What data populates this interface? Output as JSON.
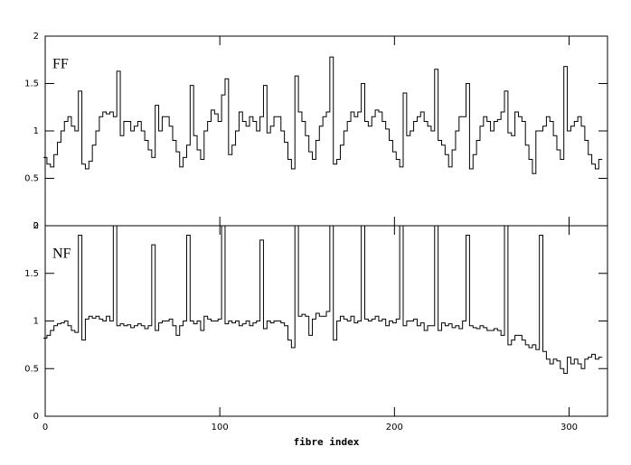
{
  "chart_data": [
    {
      "type": "line",
      "annotation": "FF",
      "xlim": [
        0,
        322
      ],
      "ylim": [
        0,
        2
      ],
      "xticks": [
        0,
        100,
        200,
        300
      ],
      "yticks": [
        0,
        0.5,
        1,
        1.5,
        2
      ],
      "x": [
        0,
        2,
        4,
        6,
        8,
        10,
        12,
        14,
        16,
        18,
        20,
        22,
        24,
        26,
        28,
        30,
        32,
        34,
        36,
        38,
        40,
        42,
        44,
        46,
        48,
        50,
        52,
        54,
        56,
        58,
        60,
        62,
        64,
        66,
        68,
        70,
        72,
        74,
        76,
        78,
        80,
        82,
        84,
        86,
        88,
        90,
        92,
        94,
        96,
        98,
        100,
        102,
        104,
        106,
        108,
        110,
        112,
        114,
        116,
        118,
        120,
        122,
        124,
        126,
        128,
        130,
        132,
        134,
        136,
        138,
        140,
        142,
        144,
        146,
        148,
        150,
        152,
        154,
        156,
        158,
        160,
        162,
        164,
        166,
        168,
        170,
        172,
        174,
        176,
        178,
        180,
        182,
        184,
        186,
        188,
        190,
        192,
        194,
        196,
        198,
        200,
        202,
        204,
        206,
        208,
        210,
        212,
        214,
        216,
        218,
        220,
        222,
        224,
        226,
        228,
        230,
        232,
        234,
        236,
        238,
        240,
        242,
        244,
        246,
        248,
        250,
        252,
        254,
        256,
        258,
        260,
        262,
        264,
        266,
        268,
        270,
        272,
        274,
        276,
        278,
        280,
        282,
        284,
        286,
        288,
        290,
        292,
        294,
        296,
        298,
        300,
        302,
        304,
        306,
        308,
        310,
        312,
        314,
        316,
        318
      ],
      "values": [
        0.72,
        0.65,
        0.62,
        0.75,
        0.88,
        1.0,
        1.1,
        1.15,
        1.05,
        1.0,
        1.42,
        0.65,
        0.6,
        0.68,
        0.85,
        1.0,
        1.15,
        1.2,
        1.18,
        1.2,
        1.15,
        1.63,
        0.95,
        1.1,
        1.1,
        1.0,
        1.05,
        1.1,
        1.0,
        0.9,
        0.8,
        0.72,
        1.27,
        1.0,
        1.15,
        1.15,
        1.05,
        0.9,
        0.78,
        0.62,
        0.72,
        0.85,
        1.48,
        0.95,
        0.8,
        0.7,
        1.0,
        1.1,
        1.22,
        1.18,
        1.1,
        1.38,
        1.55,
        0.75,
        0.85,
        1.0,
        1.2,
        1.1,
        1.05,
        1.15,
        1.1,
        1.0,
        1.15,
        1.48,
        0.98,
        1.05,
        1.15,
        1.15,
        1.0,
        0.88,
        0.7,
        0.6,
        1.58,
        1.2,
        1.1,
        0.95,
        0.78,
        0.7,
        0.9,
        1.05,
        1.15,
        1.2,
        1.78,
        0.65,
        0.7,
        0.85,
        1.0,
        1.1,
        1.2,
        1.15,
        1.2,
        1.5,
        1.1,
        1.05,
        1.15,
        1.22,
        1.2,
        1.1,
        1.02,
        0.9,
        0.78,
        0.7,
        0.62,
        1.4,
        0.95,
        1.0,
        1.1,
        1.15,
        1.2,
        1.1,
        1.05,
        1.0,
        1.65,
        0.9,
        0.85,
        0.75,
        0.62,
        0.8,
        1.0,
        1.15,
        1.15,
        1.5,
        0.6,
        0.75,
        0.9,
        1.05,
        1.15,
        1.1,
        1.0,
        1.1,
        1.12,
        1.2,
        1.42,
        0.98,
        0.95,
        1.2,
        1.15,
        1.1,
        0.85,
        0.7,
        0.55,
        1.0,
        1.0,
        1.05,
        1.15,
        1.1,
        0.95,
        0.8,
        0.7,
        1.68,
        1.0,
        1.05,
        1.1,
        1.15,
        1.05,
        0.9,
        0.75,
        0.65,
        0.6,
        0.7
      ]
    },
    {
      "type": "line",
      "annotation": "NF",
      "xlabel": "fibre index",
      "xlim": [
        0,
        322
      ],
      "ylim": [
        0,
        2
      ],
      "xticks": [
        0,
        100,
        200,
        300
      ],
      "yticks": [
        0,
        0.5,
        1,
        1.5,
        2
      ],
      "x": [
        0,
        2,
        4,
        6,
        8,
        10,
        12,
        14,
        16,
        18,
        20,
        22,
        24,
        26,
        28,
        30,
        32,
        34,
        36,
        38,
        40,
        42,
        44,
        46,
        48,
        50,
        52,
        54,
        56,
        58,
        60,
        62,
        64,
        66,
        68,
        70,
        72,
        74,
        76,
        78,
        80,
        82,
        84,
        86,
        88,
        90,
        92,
        94,
        96,
        98,
        100,
        102,
        104,
        106,
        108,
        110,
        112,
        114,
        116,
        118,
        120,
        122,
        124,
        126,
        128,
        130,
        132,
        134,
        136,
        138,
        140,
        142,
        144,
        146,
        148,
        150,
        152,
        154,
        156,
        158,
        160,
        162,
        164,
        166,
        168,
        170,
        172,
        174,
        176,
        178,
        180,
        182,
        184,
        186,
        188,
        190,
        192,
        194,
        196,
        198,
        200,
        202,
        204,
        206,
        208,
        210,
        212,
        214,
        216,
        218,
        220,
        222,
        224,
        226,
        228,
        230,
        232,
        234,
        236,
        238,
        240,
        242,
        244,
        246,
        248,
        250,
        252,
        254,
        256,
        258,
        260,
        262,
        264,
        266,
        268,
        270,
        272,
        274,
        276,
        278,
        280,
        282,
        284,
        286,
        288,
        290,
        292,
        294,
        296,
        298,
        300,
        302,
        304,
        306,
        308,
        310,
        312,
        314,
        316,
        318
      ],
      "values": [
        0.82,
        0.85,
        0.9,
        0.95,
        0.97,
        0.98,
        1.0,
        0.95,
        0.9,
        0.88,
        1.9,
        0.8,
        1.02,
        1.05,
        1.03,
        1.05,
        1.02,
        1.0,
        1.05,
        1.0,
        2.0,
        0.95,
        0.97,
        0.95,
        0.96,
        0.93,
        0.95,
        0.97,
        0.95,
        0.92,
        0.95,
        1.8,
        0.9,
        0.98,
        1.0,
        1.0,
        1.02,
        0.95,
        0.85,
        0.95,
        1.0,
        1.9,
        1.0,
        0.97,
        1.0,
        0.9,
        1.05,
        1.02,
        1.0,
        1.0,
        1.02,
        2.0,
        0.97,
        1.0,
        0.98,
        1.0,
        0.95,
        0.97,
        1.0,
        0.95,
        0.98,
        1.0,
        1.85,
        0.92,
        1.0,
        0.98,
        1.0,
        1.0,
        0.98,
        0.95,
        0.8,
        0.72,
        2.0,
        1.05,
        1.07,
        1.05,
        0.85,
        1.02,
        1.08,
        1.05,
        1.05,
        1.1,
        2.0,
        0.8,
        1.0,
        1.05,
        1.02,
        1.0,
        1.05,
        0.98,
        1.0,
        2.0,
        1.02,
        1.0,
        1.02,
        1.05,
        1.0,
        1.02,
        0.95,
        1.0,
        0.98,
        1.02,
        2.0,
        0.95,
        1.0,
        1.0,
        1.02,
        0.95,
        0.98,
        0.9,
        0.95,
        0.95,
        2.0,
        0.9,
        0.98,
        0.95,
        0.97,
        0.93,
        0.95,
        0.92,
        1.0,
        1.9,
        0.95,
        0.93,
        0.92,
        0.95,
        0.93,
        0.9,
        0.9,
        0.92,
        0.9,
        0.85,
        2.0,
        0.75,
        0.8,
        0.85,
        0.85,
        0.8,
        0.75,
        0.72,
        0.75,
        0.7,
        1.9,
        0.68,
        0.6,
        0.55,
        0.6,
        0.58,
        0.5,
        0.45,
        0.62,
        0.55,
        0.6,
        0.55,
        0.5,
        0.6,
        0.62,
        0.65,
        0.6,
        0.62
      ]
    }
  ]
}
